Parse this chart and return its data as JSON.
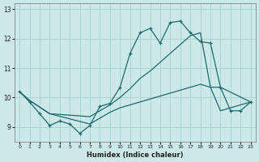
{
  "xlabel": "Humidex (Indice chaleur)",
  "bg_color": "#cce8e8",
  "grid_color": "#aad4d4",
  "line_color": "#1e6b6b",
  "xlim": [
    -0.5,
    23.5
  ],
  "ylim": [
    8.5,
    13.2
  ],
  "yticks": [
    9,
    10,
    11,
    12,
    13
  ],
  "xticks": [
    0,
    1,
    2,
    3,
    4,
    5,
    6,
    7,
    8,
    9,
    10,
    11,
    12,
    13,
    14,
    15,
    16,
    17,
    18,
    19,
    20,
    21,
    22,
    23
  ],
  "line1_x": [
    0,
    1,
    2,
    3,
    4,
    5,
    6,
    7,
    8,
    9,
    10,
    11,
    12,
    13,
    14,
    15,
    16,
    17,
    18,
    19,
    20,
    21,
    22,
    23
  ],
  "line1_y": [
    10.2,
    9.85,
    9.45,
    9.05,
    9.2,
    9.1,
    8.78,
    9.05,
    9.7,
    9.8,
    10.35,
    11.5,
    12.2,
    12.35,
    11.85,
    12.55,
    12.6,
    12.2,
    11.9,
    11.85,
    10.35,
    9.55,
    9.55,
    9.85
  ],
  "line2_x": [
    0,
    1,
    3,
    7,
    9,
    10,
    11,
    12,
    13,
    14,
    15,
    16,
    17,
    18,
    19,
    20,
    23
  ],
  "line2_y": [
    10.2,
    9.9,
    9.45,
    9.35,
    9.75,
    10.0,
    10.3,
    10.65,
    10.9,
    11.2,
    11.5,
    11.8,
    12.1,
    12.2,
    10.35,
    10.35,
    9.85
  ],
  "line3_x": [
    0,
    1,
    3,
    7,
    9,
    10,
    11,
    12,
    13,
    14,
    15,
    16,
    17,
    18,
    19,
    20,
    23
  ],
  "line3_y": [
    10.2,
    9.9,
    9.45,
    9.1,
    9.5,
    9.65,
    9.75,
    9.85,
    9.95,
    10.05,
    10.15,
    10.25,
    10.35,
    10.45,
    10.35,
    9.55,
    9.85
  ]
}
